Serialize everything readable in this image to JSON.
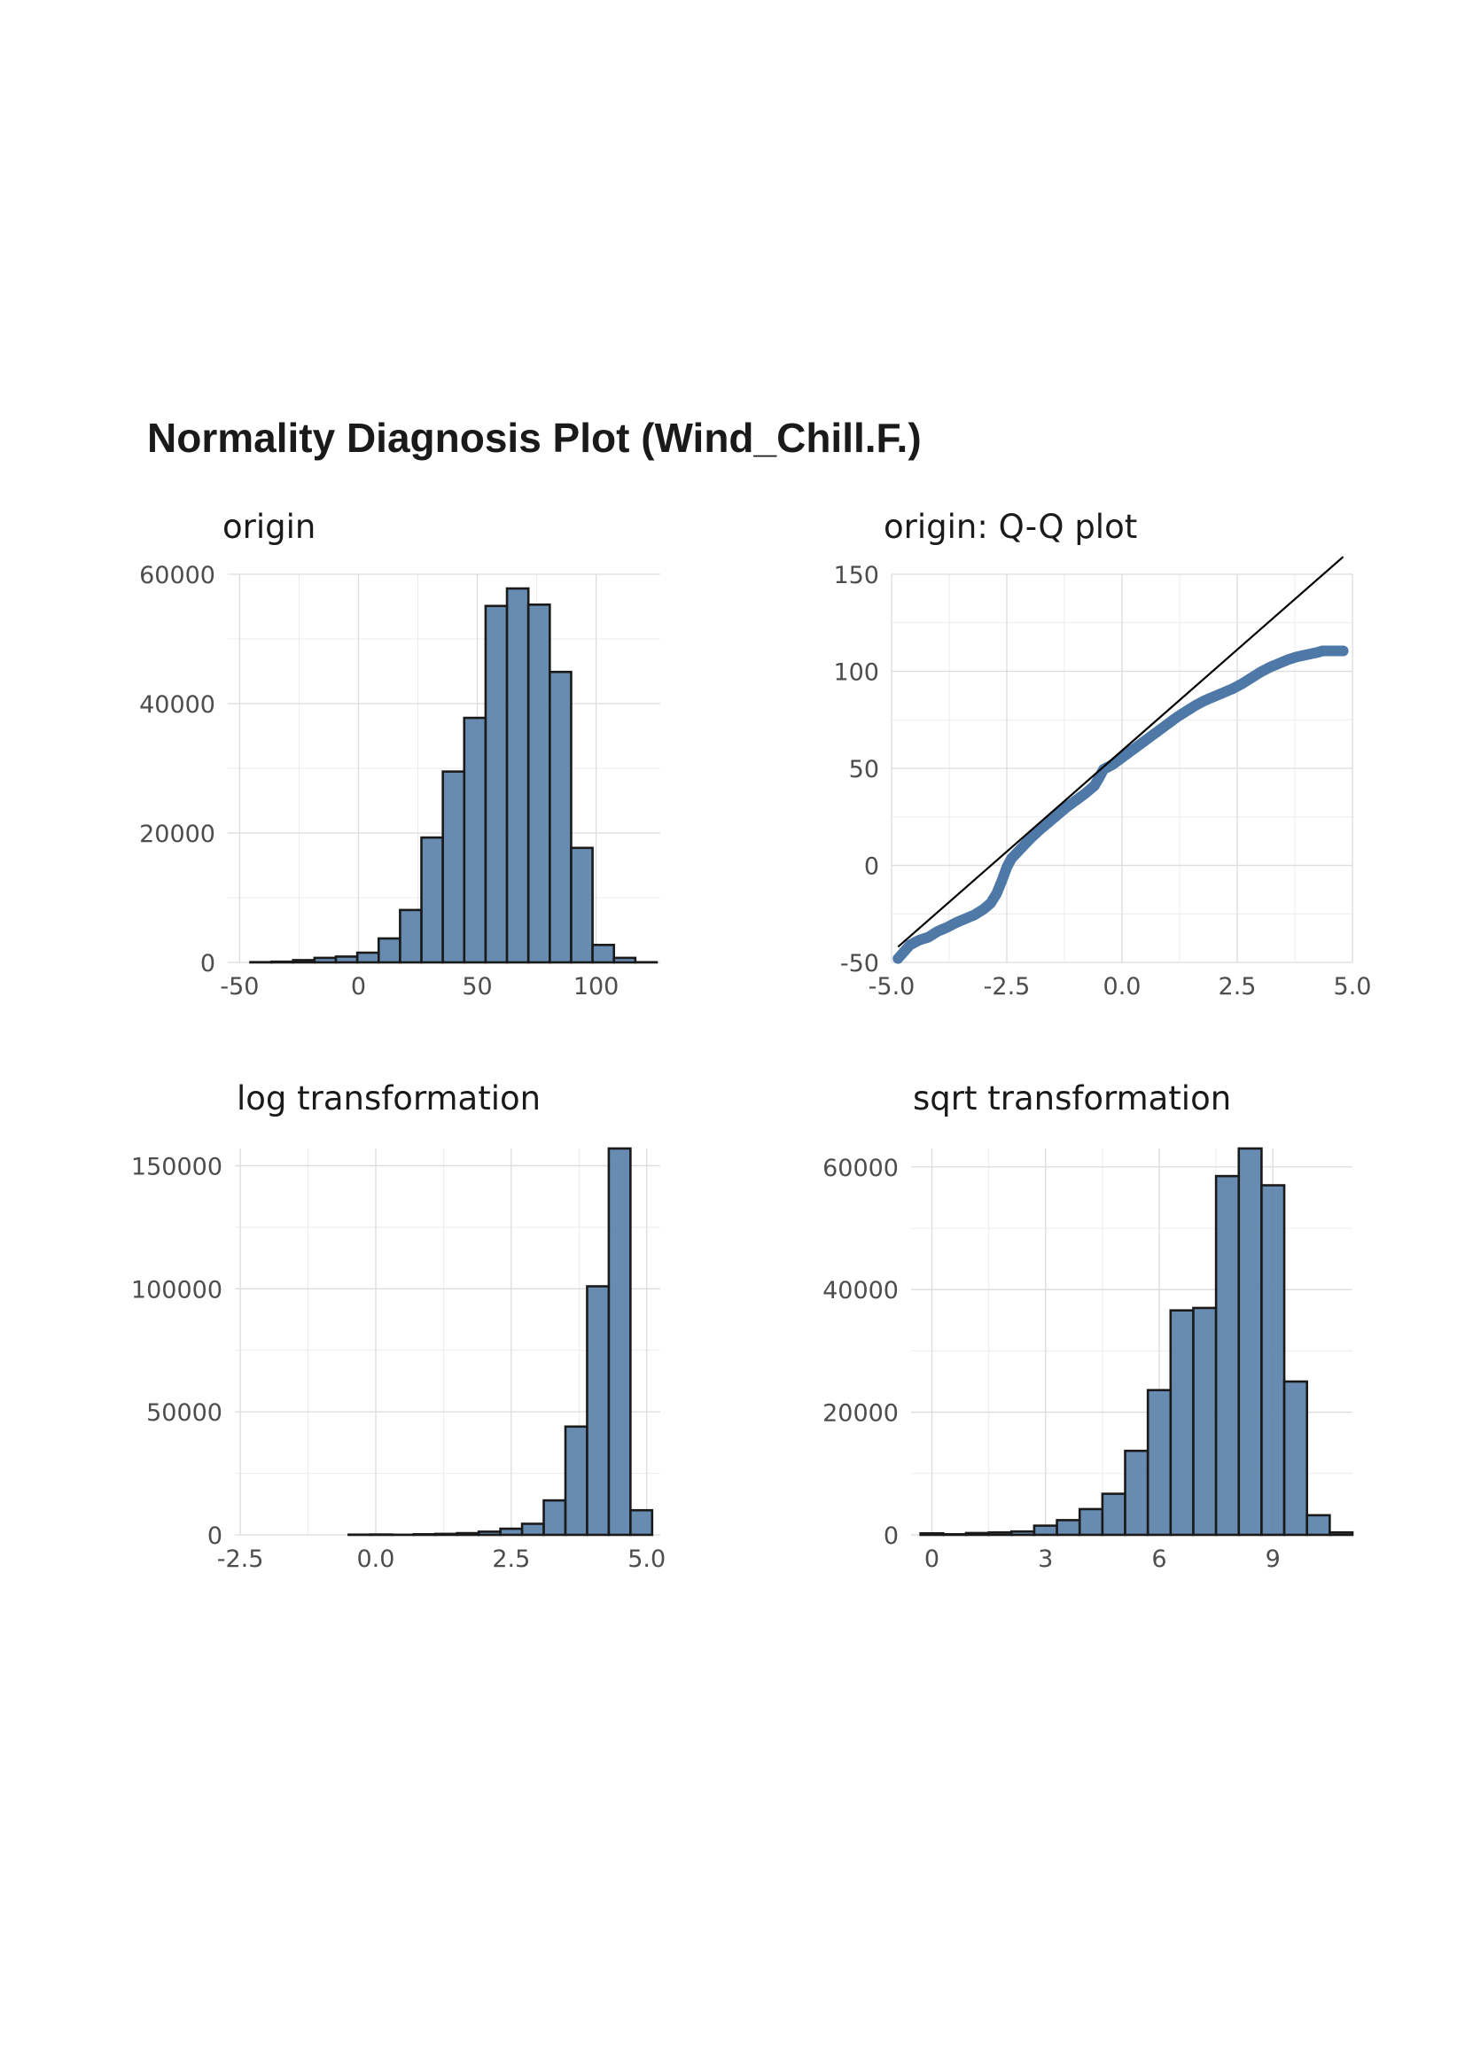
{
  "figure": {
    "title": "Normality Diagnosis Plot (Wind_Chill.F.)"
  },
  "colors": {
    "bar_fill": "#5b82aa",
    "bar_outline": "#1a1a1a",
    "point": "#4e79a7",
    "grid": "#dcdcdc"
  },
  "chart_data": [
    {
      "id": "origin",
      "type": "bar",
      "title": "origin",
      "xlabel": "",
      "ylabel": "",
      "xlim": [
        -55,
        127
      ],
      "ylim": [
        0,
        60000
      ],
      "xticks": [
        -50,
        0,
        50,
        100
      ],
      "xtick_labels": [
        "-50",
        "0",
        "50",
        "100"
      ],
      "yticks": [
        0,
        20000,
        40000,
        60000
      ],
      "ytick_labels": [
        "0",
        "20000",
        "40000",
        "60000"
      ],
      "grid": true,
      "bins": [
        {
          "x0": -45.5,
          "x1": -36.5,
          "count": 40
        },
        {
          "x0": -36.5,
          "x1": -27.5,
          "count": 110
        },
        {
          "x0": -27.5,
          "x1": -18.5,
          "count": 350
        },
        {
          "x0": -18.5,
          "x1": -9.5,
          "count": 700
        },
        {
          "x0": -9.5,
          "x1": -0.5,
          "count": 900
        },
        {
          "x0": -0.5,
          "x1": 8.5,
          "count": 1500
        },
        {
          "x0": 8.5,
          "x1": 17.5,
          "count": 3700
        },
        {
          "x0": 17.5,
          "x1": 26.5,
          "count": 8100
        },
        {
          "x0": 26.5,
          "x1": 35.5,
          "count": 19300
        },
        {
          "x0": 35.5,
          "x1": 44.5,
          "count": 29500
        },
        {
          "x0": 44.5,
          "x1": 53.5,
          "count": 37800
        },
        {
          "x0": 53.5,
          "x1": 62.5,
          "count": 55100
        },
        {
          "x0": 62.5,
          "x1": 71.5,
          "count": 57800
        },
        {
          "x0": 71.5,
          "x1": 80.5,
          "count": 55300
        },
        {
          "x0": 80.5,
          "x1": 89.5,
          "count": 44900
        },
        {
          "x0": 89.5,
          "x1": 98.5,
          "count": 17700
        },
        {
          "x0": 98.5,
          "x1": 107.5,
          "count": 2700
        },
        {
          "x0": 107.5,
          "x1": 116.5,
          "count": 700
        },
        {
          "x0": 116.5,
          "x1": 125.5,
          "count": 30
        }
      ]
    },
    {
      "id": "qq",
      "type": "scatter",
      "title": "origin: Q-Q plot",
      "xlabel": "",
      "ylabel": "",
      "xlim": [
        -5.0,
        5.0
      ],
      "ylim": [
        -50,
        150
      ],
      "xticks": [
        -5.0,
        -2.5,
        0.0,
        2.5,
        5.0
      ],
      "xtick_labels": [
        "-5.0",
        "-2.5",
        "0.0",
        "2.5",
        "5.0"
      ],
      "yticks": [
        -50,
        0,
        50,
        100,
        150
      ],
      "ytick_labels": [
        "-50",
        "0",
        "50",
        "100",
        "150"
      ],
      "grid": true,
      "points": [
        [
          -4.86,
          -48
        ],
        [
          -4.6,
          -41
        ],
        [
          -4.4,
          -38.5
        ],
        [
          -4.2,
          -37
        ],
        [
          -4.0,
          -34
        ],
        [
          -3.8,
          -32
        ],
        [
          -3.6,
          -29.5
        ],
        [
          -3.4,
          -27.5
        ],
        [
          -3.2,
          -25.5
        ],
        [
          -3.0,
          -22.5
        ],
        [
          -2.85,
          -19.5
        ],
        [
          -2.72,
          -14.5
        ],
        [
          -2.6,
          -7.5
        ],
        [
          -2.5,
          -1
        ],
        [
          -2.4,
          3.5
        ],
        [
          -2.2,
          8.5
        ],
        [
          -2.0,
          13.5
        ],
        [
          -1.8,
          18
        ],
        [
          -1.6,
          22
        ],
        [
          -1.4,
          26
        ],
        [
          -1.2,
          30
        ],
        [
          -1.0,
          33.5
        ],
        [
          -0.8,
          37
        ],
        [
          -0.6,
          41
        ],
        [
          -0.5,
          45
        ],
        [
          -0.4,
          49.5
        ],
        [
          -0.2,
          52
        ],
        [
          0.0,
          55.5
        ],
        [
          0.2,
          59
        ],
        [
          0.4,
          62.5
        ],
        [
          0.6,
          66
        ],
        [
          0.8,
          69.5
        ],
        [
          1.0,
          73
        ],
        [
          1.2,
          76.5
        ],
        [
          1.4,
          79.5
        ],
        [
          1.6,
          82.5
        ],
        [
          1.8,
          85
        ],
        [
          2.0,
          87
        ],
        [
          2.2,
          89
        ],
        [
          2.4,
          91
        ],
        [
          2.6,
          93.5
        ],
        [
          2.8,
          96.5
        ],
        [
          3.0,
          99.5
        ],
        [
          3.2,
          102
        ],
        [
          3.4,
          104
        ],
        [
          3.6,
          106
        ],
        [
          3.8,
          107.5
        ],
        [
          4.0,
          108.5
        ],
        [
          4.2,
          109.5
        ],
        [
          4.35,
          110.5
        ],
        [
          4.5,
          110.5
        ],
        [
          4.65,
          110.5
        ],
        [
          4.8,
          110.5
        ]
      ],
      "reference_line": {
        "x": [
          -4.86,
          4.8
        ],
        "y": [
          -42,
          159
        ]
      }
    },
    {
      "id": "log",
      "type": "bar",
      "title": "log transformation",
      "xlabel": "",
      "ylabel": "",
      "xlim": [
        -2.6,
        5.25
      ],
      "ylim": [
        0,
        157000
      ],
      "xticks": [
        -2.5,
        0.0,
        2.5,
        5.0
      ],
      "xtick_labels": [
        "-2.5",
        "0.0",
        "2.5",
        "5.0"
      ],
      "yticks": [
        0,
        50000,
        100000,
        150000
      ],
      "ytick_labels": [
        "0",
        "50000",
        "100000",
        "150000"
      ],
      "grid": true,
      "bins": [
        {
          "x0": -2.5,
          "x1": -2.1,
          "count": 0
        },
        {
          "x0": -2.1,
          "x1": -1.7,
          "count": 0
        },
        {
          "x0": -1.7,
          "x1": -1.3,
          "count": 0
        },
        {
          "x0": -1.3,
          "x1": -0.9,
          "count": 0
        },
        {
          "x0": -0.9,
          "x1": -0.5,
          "count": 0
        },
        {
          "x0": -0.5,
          "x1": -0.1,
          "count": 100
        },
        {
          "x0": -0.1,
          "x1": 0.3,
          "count": 150
        },
        {
          "x0": 0.3,
          "x1": 0.7,
          "count": 50
        },
        {
          "x0": 0.7,
          "x1": 1.1,
          "count": 250
        },
        {
          "x0": 1.1,
          "x1": 1.5,
          "count": 400
        },
        {
          "x0": 1.5,
          "x1": 1.9,
          "count": 700
        },
        {
          "x0": 1.9,
          "x1": 2.3,
          "count": 1300
        },
        {
          "x0": 2.3,
          "x1": 2.7,
          "count": 2500
        },
        {
          "x0": 2.7,
          "x1": 3.1,
          "count": 4500
        },
        {
          "x0": 3.1,
          "x1": 3.5,
          "count": 14000
        },
        {
          "x0": 3.5,
          "x1": 3.9,
          "count": 44000
        },
        {
          "x0": 3.9,
          "x1": 4.3,
          "count": 101000
        },
        {
          "x0": 4.3,
          "x1": 4.7,
          "count": 157000
        },
        {
          "x0": 4.7,
          "x1": 5.1,
          "count": 10000
        }
      ]
    },
    {
      "id": "sqrt",
      "type": "bar",
      "title": "sqrt transformation",
      "xlabel": "",
      "ylabel": "",
      "xlim": [
        -0.55,
        11.1
      ],
      "ylim": [
        0,
        63000
      ],
      "xticks": [
        0,
        3,
        6,
        9
      ],
      "xtick_labels": [
        "0",
        "3",
        "6",
        "9"
      ],
      "yticks": [
        0,
        20000,
        40000,
        60000
      ],
      "ytick_labels": [
        "0",
        "20000",
        "40000",
        "60000"
      ],
      "grid": true,
      "bins": [
        {
          "x0": -0.3,
          "x1": 0.3,
          "count": 250
        },
        {
          "x0": 0.3,
          "x1": 0.9,
          "count": 100
        },
        {
          "x0": 0.9,
          "x1": 1.5,
          "count": 300
        },
        {
          "x0": 1.5,
          "x1": 2.1,
          "count": 400
        },
        {
          "x0": 2.1,
          "x1": 2.7,
          "count": 550
        },
        {
          "x0": 2.7,
          "x1": 3.3,
          "count": 1500
        },
        {
          "x0": 3.3,
          "x1": 3.9,
          "count": 2400
        },
        {
          "x0": 3.9,
          "x1": 4.5,
          "count": 4200
        },
        {
          "x0": 4.5,
          "x1": 5.1,
          "count": 6700
        },
        {
          "x0": 5.1,
          "x1": 5.7,
          "count": 13700
        },
        {
          "x0": 5.7,
          "x1": 6.3,
          "count": 23600
        },
        {
          "x0": 6.3,
          "x1": 6.9,
          "count": 36600
        },
        {
          "x0": 6.9,
          "x1": 7.5,
          "count": 37000
        },
        {
          "x0": 7.5,
          "x1": 8.1,
          "count": 58500
        },
        {
          "x0": 8.1,
          "x1": 8.7,
          "count": 63000
        },
        {
          "x0": 8.7,
          "x1": 9.3,
          "count": 57000
        },
        {
          "x0": 9.3,
          "x1": 9.9,
          "count": 25000
        },
        {
          "x0": 9.9,
          "x1": 10.5,
          "count": 3200
        },
        {
          "x0": 10.5,
          "x1": 11.1,
          "count": 400
        }
      ]
    }
  ]
}
